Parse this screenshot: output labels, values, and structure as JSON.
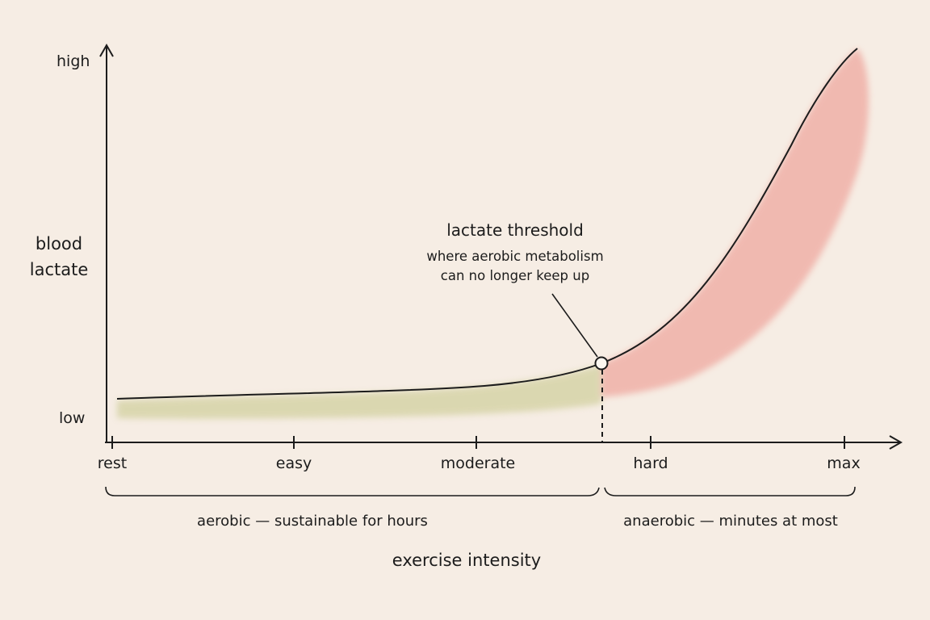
{
  "y_axis": {
    "label_line1": "blood",
    "label_line2": "lactate",
    "high_label": "high",
    "low_label": "low"
  },
  "x_axis": {
    "title": "exercise intensity",
    "ticks": [
      "rest",
      "easy",
      "moderate",
      "hard",
      "max"
    ]
  },
  "threshold": {
    "title": "lactate threshold",
    "desc_line1": "where aerobic metabolism",
    "desc_line2": "can no longer keep up"
  },
  "zones": {
    "aerobic": "aerobic — sustainable for hours",
    "anaerobic": "anaerobic — minutes at most"
  },
  "colors": {
    "background": "#f6ede4",
    "ink": "#1c1c1c",
    "aerobic_fill": "#c9c98f",
    "anaerobic_fill": "#ec8f86"
  }
}
